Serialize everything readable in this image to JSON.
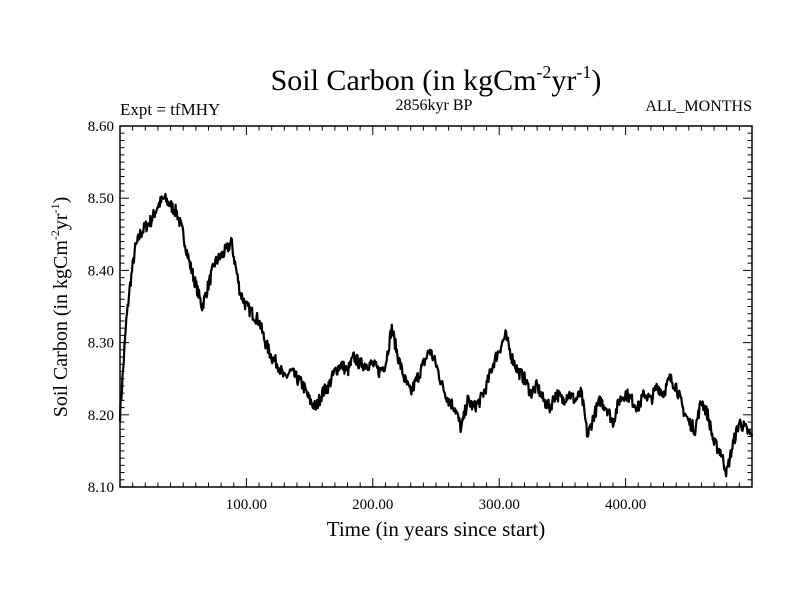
{
  "chart_data": {
    "type": "line",
    "title": "Soil Carbon (in kgCm",
    "title_sup1": "-2",
    "title_mid": "yr",
    "title_sup2": "-1",
    "title_end": ")",
    "subtitle_left": "Expt = tfMHY",
    "subtitle_center": "2856kyr BP",
    "subtitle_right": "ALL_MONTHS",
    "xlabel": "Time (in years since start)",
    "ylabel": "Soil Carbon (in kgCm",
    "ylabel_sup1": "-2",
    "ylabel_mid": "yr",
    "ylabel_sup2": "-1",
    "ylabel_end": ")",
    "xlim": [
      0,
      500
    ],
    "ylim": [
      8.1,
      8.6
    ],
    "xticks": [
      100,
      200,
      300,
      400
    ],
    "xtick_labels": [
      "100.00",
      "200.00",
      "300.00",
      "400.00"
    ],
    "yticks": [
      8.1,
      8.2,
      8.3,
      8.4,
      8.5,
      8.6
    ],
    "ytick_labels": [
      "8.10",
      "8.20",
      "8.30",
      "8.40",
      "8.50",
      "8.60"
    ],
    "x": [
      0,
      2,
      5,
      8,
      12,
      16,
      20,
      25,
      30,
      35,
      40,
      45,
      50,
      55,
      60,
      65,
      70,
      75,
      80,
      85,
      88,
      90,
      95,
      100,
      105,
      110,
      115,
      120,
      125,
      130,
      135,
      140,
      145,
      150,
      155,
      160,
      165,
      170,
      175,
      180,
      185,
      190,
      195,
      200,
      205,
      210,
      215,
      220,
      225,
      230,
      235,
      240,
      245,
      250,
      255,
      260,
      265,
      270,
      275,
      280,
      285,
      290,
      295,
      300,
      305,
      310,
      315,
      320,
      325,
      330,
      335,
      340,
      345,
      350,
      355,
      360,
      365,
      370,
      375,
      380,
      385,
      390,
      395,
      400,
      405,
      410,
      415,
      420,
      425,
      430,
      435,
      440,
      445,
      450,
      455,
      460,
      465,
      470,
      475,
      480,
      485,
      490,
      495,
      500
    ],
    "values": [
      8.2,
      8.25,
      8.33,
      8.38,
      8.43,
      8.45,
      8.46,
      8.47,
      8.49,
      8.5,
      8.49,
      8.48,
      8.45,
      8.41,
      8.38,
      8.35,
      8.38,
      8.41,
      8.42,
      8.43,
      8.44,
      8.42,
      8.37,
      8.35,
      8.34,
      8.33,
      8.3,
      8.28,
      8.27,
      8.25,
      8.26,
      8.25,
      8.24,
      8.22,
      8.21,
      8.23,
      8.24,
      8.26,
      8.27,
      8.26,
      8.28,
      8.27,
      8.27,
      8.27,
      8.26,
      8.27,
      8.32,
      8.28,
      8.25,
      8.23,
      8.25,
      8.27,
      8.29,
      8.27,
      8.24,
      8.22,
      8.21,
      8.18,
      8.22,
      8.21,
      8.22,
      8.24,
      8.27,
      8.29,
      8.31,
      8.28,
      8.26,
      8.25,
      8.23,
      8.24,
      8.22,
      8.21,
      8.23,
      8.22,
      8.23,
      8.22,
      8.23,
      8.17,
      8.2,
      8.22,
      8.21,
      8.19,
      8.22,
      8.23,
      8.22,
      8.21,
      8.23,
      8.22,
      8.24,
      8.23,
      8.25,
      8.24,
      8.21,
      8.19,
      8.18,
      8.22,
      8.2,
      8.16,
      8.15,
      8.12,
      8.16,
      8.19,
      8.18,
      8.17
    ]
  }
}
